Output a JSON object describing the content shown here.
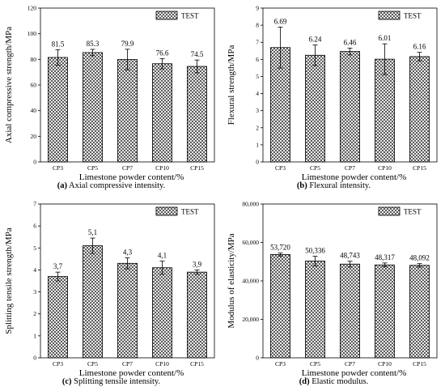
{
  "figure": {
    "panels": [
      {
        "id": "a",
        "caption_letter": "(a)",
        "caption_text": " Axial compressive intensity."
      },
      {
        "id": "b",
        "caption_letter": "(b)",
        "caption_text": " Flexural intensity."
      },
      {
        "id": "c",
        "caption_letter": "(c)",
        "caption_text": " Splitting tensile intensity."
      },
      {
        "id": "d",
        "caption_letter": "(d)",
        "caption_text": " Elastic modulus."
      }
    ]
  },
  "colors": {
    "bar_fill": "#ffffff",
    "hatch": "#000000",
    "axis": "#000000"
  },
  "chart_data": [
    {
      "type": "bar",
      "categories": [
        "CP3",
        "CP5",
        "CP7",
        "CP10",
        "CP15"
      ],
      "series": [
        {
          "name": "TEST",
          "values": [
            81.5,
            85.3,
            79.9,
            76.6,
            74.5
          ]
        }
      ],
      "errors": [
        6,
        2.5,
        8,
        4,
        5
      ],
      "value_labels": [
        "81.5",
        "85.3",
        "79.9",
        "76.6",
        "74.5"
      ],
      "xlabel": "Limestone powder content/%",
      "ylabel": "Axial compressive strength/MPa",
      "ylim": [
        0,
        120
      ],
      "yticks": [
        0,
        20,
        40,
        60,
        80,
        100,
        120
      ],
      "ytick_labels": [
        "0",
        "20",
        "40",
        "60",
        "80",
        "100",
        "120"
      ],
      "legend": "top-right",
      "hatch": "crosshatch"
    },
    {
      "type": "bar",
      "categories": [
        "CP3",
        "CP5",
        "CP7",
        "CP10",
        "CP15"
      ],
      "series": [
        {
          "name": "TEST",
          "values": [
            6.69,
            6.24,
            6.46,
            6.01,
            6.16
          ]
        }
      ],
      "errors": [
        1.2,
        0.6,
        0.2,
        0.9,
        0.25
      ],
      "value_labels": [
        "6.69",
        "6.24",
        "6.46",
        "6.01",
        "6.16"
      ],
      "xlabel": "Limestone powder content/%",
      "ylabel": "Flexural strength/MPa",
      "ylim": [
        0,
        9
      ],
      "yticks": [
        0,
        1,
        2,
        3,
        4,
        5,
        6,
        7,
        8,
        9
      ],
      "ytick_labels": [
        "0",
        "1",
        "2",
        "3",
        "4",
        "5",
        "6",
        "7",
        "8",
        "9"
      ],
      "legend": "top-right",
      "hatch": "crosshatch"
    },
    {
      "type": "bar",
      "categories": [
        "CP3",
        "CP5",
        "CP7",
        "CP10",
        "CP15"
      ],
      "series": [
        {
          "name": "TEST",
          "values": [
            3.7,
            5.1,
            4.3,
            4.1,
            3.9
          ]
        }
      ],
      "errors": [
        0.2,
        0.35,
        0.25,
        0.3,
        0.1
      ],
      "value_labels": [
        "3,7",
        "5,1",
        "4,3",
        "4,1",
        "3,9"
      ],
      "xlabel": "Limestone powder content/%",
      "ylabel": "Splitting tensile strength/MPa",
      "ylim": [
        0,
        7
      ],
      "yticks": [
        0,
        1,
        2,
        3,
        4,
        5,
        6,
        7
      ],
      "ytick_labels": [
        "0",
        "1",
        "2",
        "3",
        "4",
        "5",
        "6",
        "7"
      ],
      "legend": "top-right",
      "hatch": "crosshatch"
    },
    {
      "type": "bar",
      "categories": [
        "CP3",
        "CP5",
        "CP7",
        "CP10",
        "CP15"
      ],
      "series": [
        {
          "name": "TEST",
          "values": [
            53720,
            50336,
            48743,
            48317,
            48092
          ]
        }
      ],
      "errors": [
        800,
        2500,
        1500,
        1000,
        900
      ],
      "value_labels": [
        "53,720",
        "50,336",
        "48,743",
        "48,317",
        "48,092"
      ],
      "xlabel": "Limestone powder content/%",
      "ylabel": "Modulus of elasticity/MPa",
      "ylim": [
        0,
        80000
      ],
      "yticks": [
        0,
        20000,
        40000,
        60000,
        80000
      ],
      "ytick_labels": [
        "0",
        "20,000",
        "40,000",
        "60,000",
        "80,000"
      ],
      "legend": "top-right",
      "hatch": "crosshatch"
    }
  ]
}
